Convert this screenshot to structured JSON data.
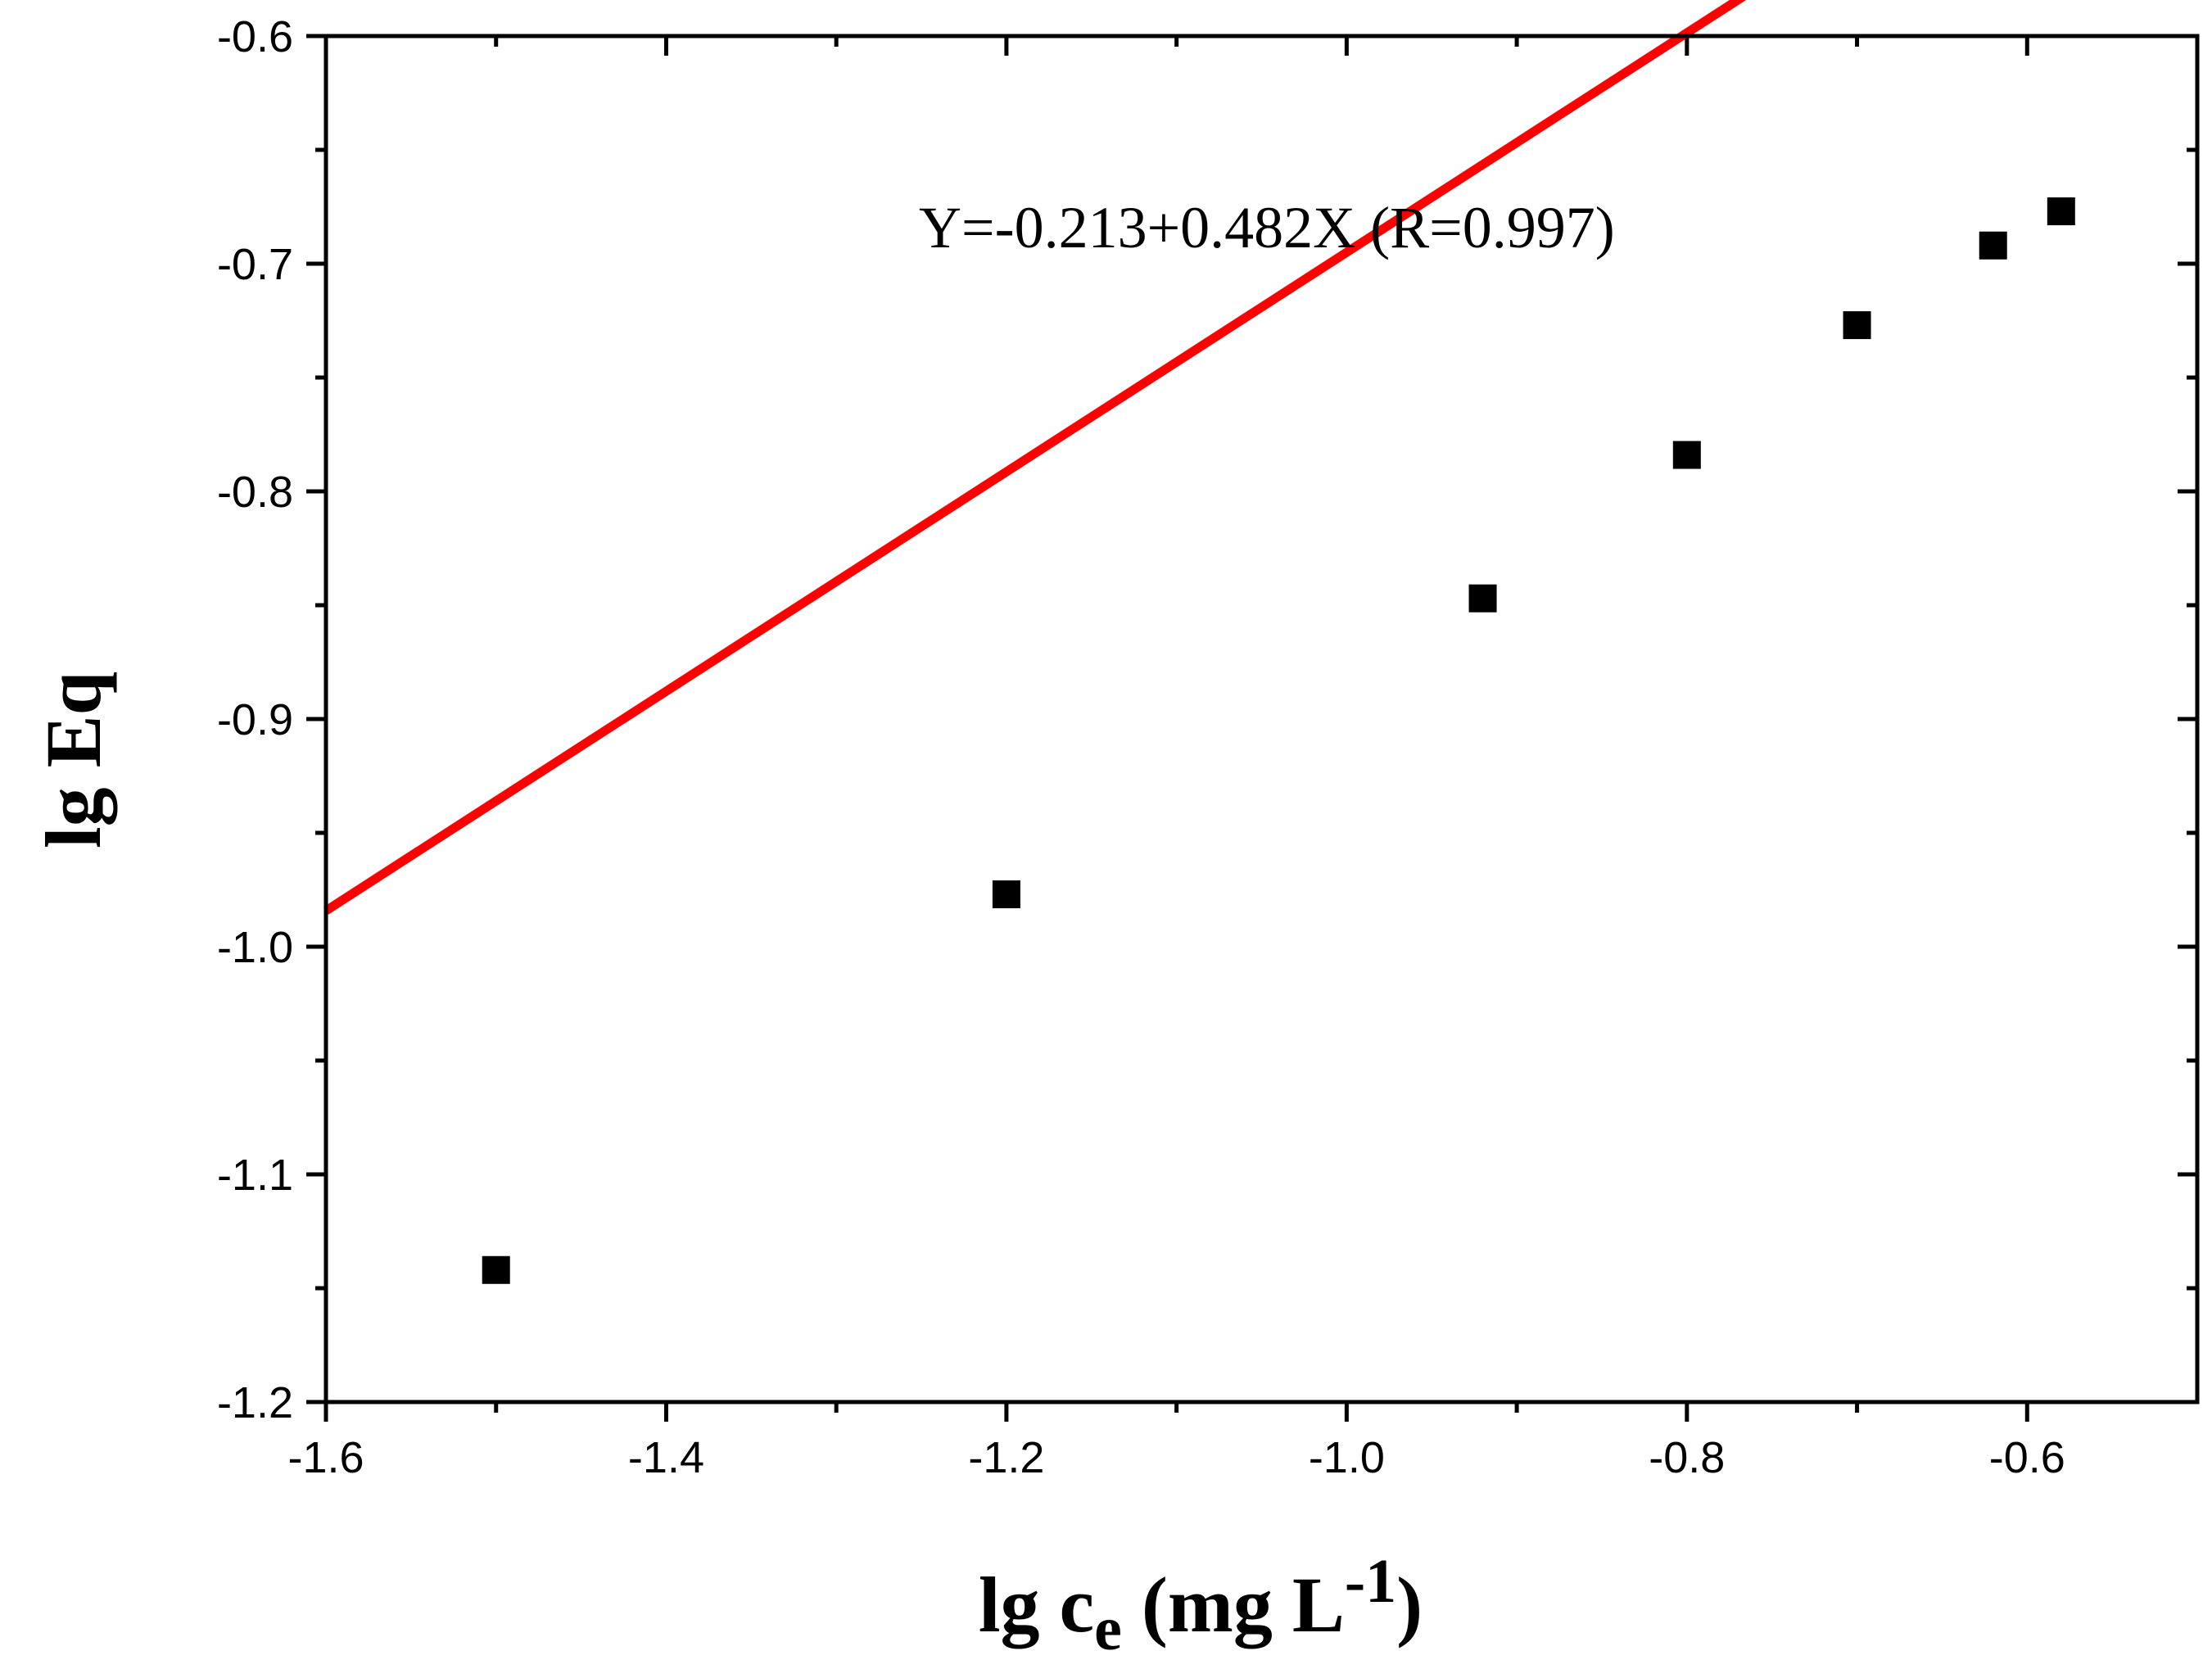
{
  "chart_data": {
    "type": "scatter",
    "xlabel": {
      "prefix": "lg c",
      "subscript": "e",
      "unit_open": " (mg L",
      "superscript": "-1",
      "unit_close": ")"
    },
    "ylabel": "lg Eq",
    "xlim": [
      -1.6,
      -0.5
    ],
    "ylim": [
      -1.2,
      -0.6
    ],
    "x_ticks": [
      {
        "value": -1.6,
        "label": "-1.6"
      },
      {
        "value": -1.4,
        "label": "-1.4"
      },
      {
        "value": -1.2,
        "label": "-1.2"
      },
      {
        "value": -1.0,
        "label": "-1.0"
      },
      {
        "value": -0.8,
        "label": "-0.8"
      },
      {
        "value": -0.6,
        "label": "-0.6"
      }
    ],
    "y_ticks": [
      {
        "value": -1.2,
        "label": "-1.2"
      },
      {
        "value": -1.1,
        "label": "-1.1"
      },
      {
        "value": -1.0,
        "label": "-1.0"
      },
      {
        "value": -0.9,
        "label": "-0.9"
      },
      {
        "value": -0.8,
        "label": "-0.8"
      },
      {
        "value": -0.7,
        "label": "-0.7"
      },
      {
        "value": -0.6,
        "label": "-0.6"
      }
    ],
    "x_minor_ticks": [
      -1.5,
      -1.3,
      -1.1,
      -0.9,
      -0.7
    ],
    "y_minor_ticks": [
      -1.15,
      -1.05,
      -0.95,
      -0.85,
      -0.75,
      -0.65
    ],
    "series": [
      {
        "marker": "square",
        "color": "#000000",
        "points": [
          {
            "x": -1.5,
            "y": -1.142
          },
          {
            "x": -1.2,
            "y": -0.977
          },
          {
            "x": -0.92,
            "y": -0.847
          },
          {
            "x": -0.8,
            "y": -0.784
          },
          {
            "x": -0.7,
            "y": -0.727
          },
          {
            "x": -0.62,
            "y": -0.692
          },
          {
            "x": -0.58,
            "y": -0.677
          }
        ]
      }
    ],
    "fit": {
      "intercept": -0.213,
      "slope": 0.482,
      "x_range": [
        -1.6,
        -0.5
      ],
      "color": "#ff0000"
    },
    "annotation": "Y=-0.213+0.482X (R=0.997)",
    "grid": false
  }
}
